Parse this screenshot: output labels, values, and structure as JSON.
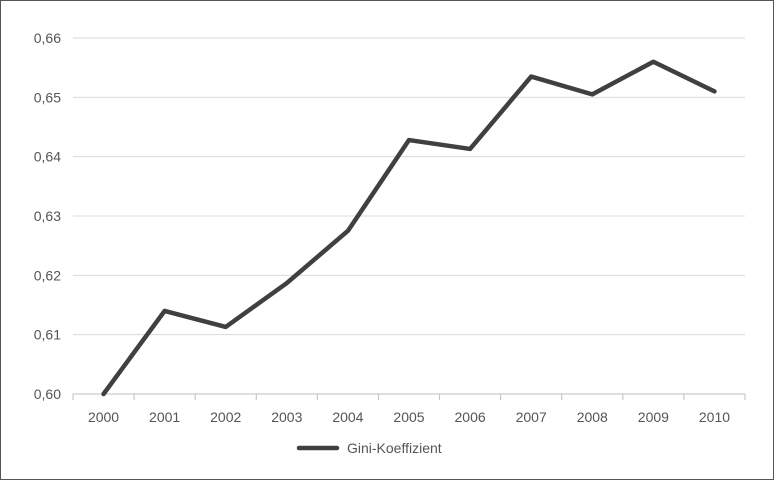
{
  "chart_data": {
    "type": "line",
    "title": "",
    "xlabel": "",
    "ylabel": "",
    "categories": [
      "2000",
      "2001",
      "2002",
      "2003",
      "2004",
      "2005",
      "2006",
      "2007",
      "2008",
      "2009",
      "2010"
    ],
    "series": [
      {
        "name": "Gini-Koeffizient",
        "values": [
          0.6,
          0.614,
          0.6113,
          0.6187,
          0.6275,
          0.6428,
          0.6413,
          0.6535,
          0.6505,
          0.656,
          0.651
        ]
      }
    ],
    "ylim": [
      0.6,
      0.66
    ],
    "yticks": [
      "0,60",
      "0,61",
      "0,62",
      "0,63",
      "0,64",
      "0,65",
      "0,66"
    ],
    "grid": "horizontal",
    "legend": "bottom-center",
    "colors": {
      "line": "#404040",
      "grid": "#d9d9d9",
      "axis": "#bfbfbf",
      "text": "#555555",
      "border": "#555555"
    }
  }
}
